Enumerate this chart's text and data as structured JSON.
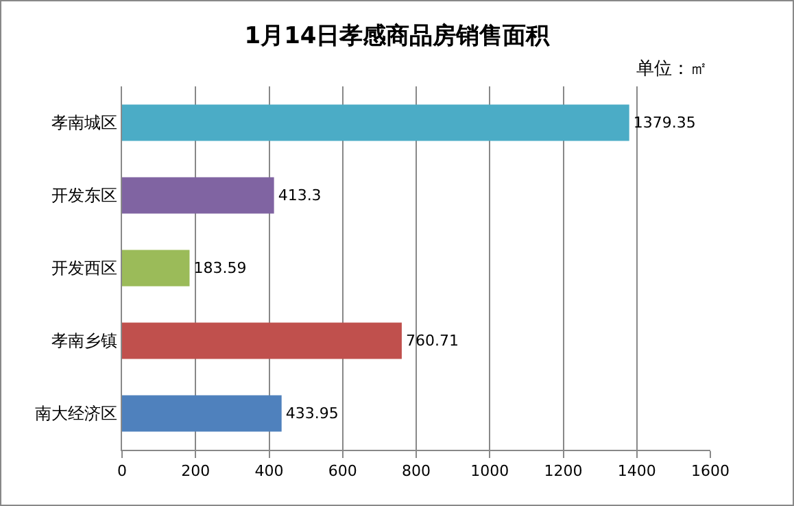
{
  "chart_data": {
    "type": "bar",
    "orientation": "horizontal",
    "title": "1月14日孝感商品房销售面积",
    "annotations": [
      "单位：㎡"
    ],
    "categories": [
      "孝南城区",
      "开发东区",
      "开发西区",
      "孝南乡镇",
      "南大经济区"
    ],
    "values": [
      1379.35,
      413.3,
      183.59,
      760.71,
      433.95
    ],
    "colors": [
      "#4bacc6",
      "#8064a2",
      "#9bbb59",
      "#c0504d",
      "#4f81bd"
    ],
    "xlim": [
      0,
      1600
    ],
    "xticks": [
      0,
      200,
      400,
      600,
      800,
      1000,
      1200,
      1400,
      1600
    ],
    "grid": "x",
    "data_labels": true
  }
}
